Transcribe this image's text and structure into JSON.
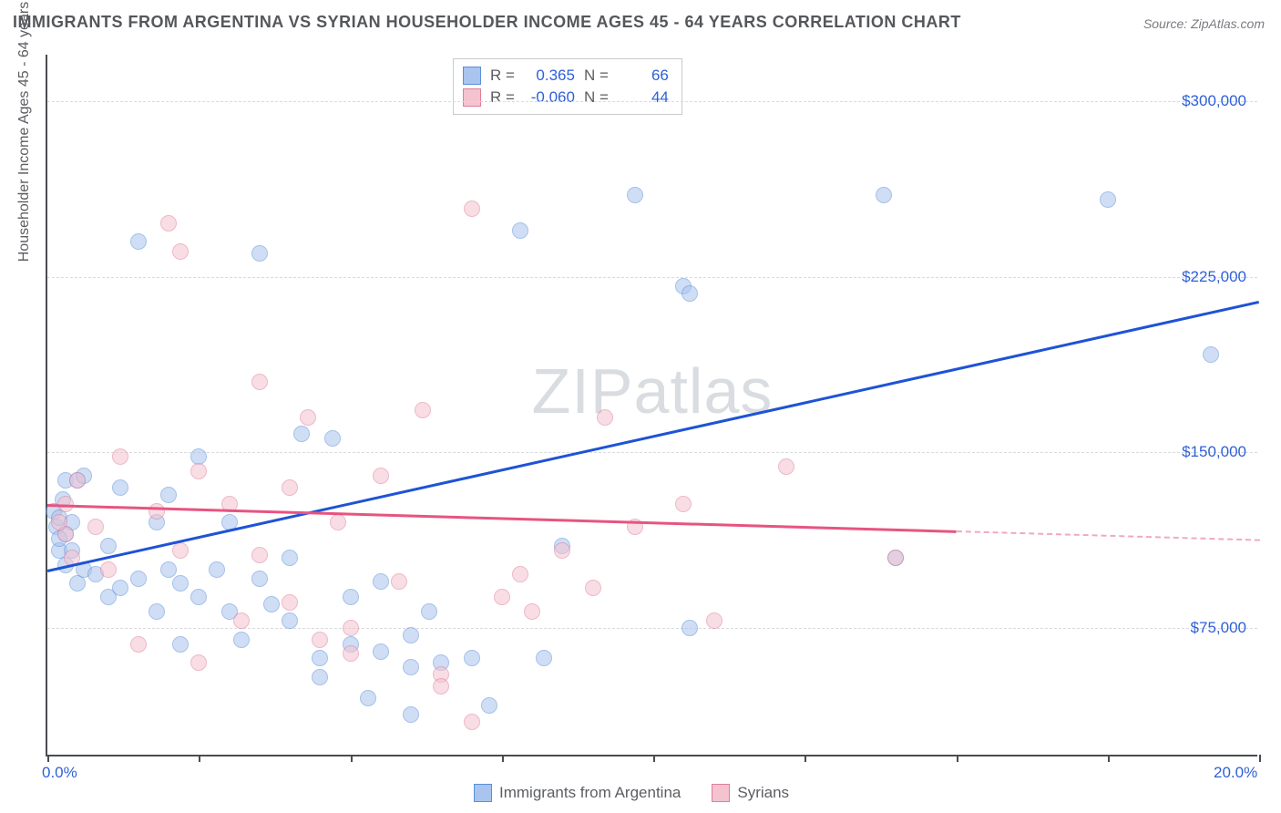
{
  "title": "IMMIGRANTS FROM ARGENTINA VS SYRIAN HOUSEHOLDER INCOME AGES 45 - 64 YEARS CORRELATION CHART",
  "source": "Source: ZipAtlas.com",
  "ylabel": "Householder Income Ages 45 - 64 years",
  "watermark_a": "ZIP",
  "watermark_b": "atlas",
  "chart": {
    "type": "scatter",
    "background_color": "#ffffff",
    "grid_color": "#d9dbdf",
    "axis_color": "#4a4c50",
    "text_color": "#5c5e62",
    "value_color": "#2f60d8",
    "xlim": [
      0,
      20
    ],
    "ylim": [
      20000,
      320000
    ],
    "xtick_positions": [
      0,
      2.5,
      5,
      7.5,
      10,
      12.5,
      15,
      17.5,
      20
    ],
    "xtick_labels": {
      "0": "0.0%",
      "20": "20.0%"
    },
    "ytick_positions": [
      75000,
      150000,
      225000,
      300000
    ],
    "ytick_labels": [
      "$75,000",
      "$150,000",
      "$225,000",
      "$300,000"
    ],
    "marker_radius": 9,
    "marker_opacity": 0.55,
    "series": [
      {
        "name": "Immigrants from Argentina",
        "color_fill": "#a9c4ee",
        "color_stroke": "#5b8fd9",
        "R": "0.365",
        "N": "66",
        "trend": {
          "x1": 0,
          "y1": 100000,
          "x2": 20,
          "y2": 215000,
          "color": "#1e53d4",
          "dashed_from_x": null
        },
        "points": [
          [
            0.1,
            125000
          ],
          [
            0.15,
            118000
          ],
          [
            0.2,
            122000
          ],
          [
            0.2,
            108000
          ],
          [
            0.25,
            130000
          ],
          [
            0.3,
            115000
          ],
          [
            0.3,
            102000
          ],
          [
            0.3,
            138000
          ],
          [
            0.4,
            120000
          ],
          [
            0.4,
            108000
          ],
          [
            0.5,
            138000
          ],
          [
            0.5,
            94000
          ],
          [
            0.6,
            140000
          ],
          [
            0.6,
            100000
          ],
          [
            0.8,
            98000
          ],
          [
            1.0,
            110000
          ],
          [
            1.0,
            88000
          ],
          [
            1.2,
            92000
          ],
          [
            1.2,
            135000
          ],
          [
            1.5,
            240000
          ],
          [
            1.5,
            96000
          ],
          [
            1.8,
            82000
          ],
          [
            1.8,
            120000
          ],
          [
            2.0,
            100000
          ],
          [
            2.0,
            132000
          ],
          [
            2.2,
            68000
          ],
          [
            2.2,
            94000
          ],
          [
            2.5,
            148000
          ],
          [
            2.5,
            88000
          ],
          [
            2.8,
            100000
          ],
          [
            3.0,
            82000
          ],
          [
            3.0,
            120000
          ],
          [
            3.2,
            70000
          ],
          [
            3.5,
            235000
          ],
          [
            3.5,
            96000
          ],
          [
            3.7,
            85000
          ],
          [
            4.0,
            78000
          ],
          [
            4.0,
            105000
          ],
          [
            4.2,
            158000
          ],
          [
            4.5,
            62000
          ],
          [
            4.5,
            54000
          ],
          [
            4.7,
            156000
          ],
          [
            5.0,
            88000
          ],
          [
            5.0,
            68000
          ],
          [
            5.3,
            45000
          ],
          [
            5.5,
            65000
          ],
          [
            5.5,
            95000
          ],
          [
            6.0,
            72000
          ],
          [
            6.0,
            58000
          ],
          [
            6.0,
            38000
          ],
          [
            6.3,
            82000
          ],
          [
            6.5,
            60000
          ],
          [
            7.0,
            62000
          ],
          [
            7.3,
            42000
          ],
          [
            7.8,
            245000
          ],
          [
            8.2,
            62000
          ],
          [
            8.5,
            110000
          ],
          [
            9.7,
            260000
          ],
          [
            10.5,
            221000
          ],
          [
            10.6,
            218000
          ],
          [
            10.6,
            75000
          ],
          [
            13.8,
            260000
          ],
          [
            14.0,
            105000
          ],
          [
            17.5,
            258000
          ],
          [
            19.2,
            192000
          ],
          [
            0.2,
            113000
          ]
        ]
      },
      {
        "name": "Syrians",
        "color_fill": "#f4c3cf",
        "color_stroke": "#e07f9b",
        "R": "-0.060",
        "N": "44",
        "trend": {
          "x1": 0,
          "y1": 128000,
          "x2": 20,
          "y2": 113000,
          "color": "#e75480",
          "dashed_from_x": 15
        },
        "points": [
          [
            0.3,
            128000
          ],
          [
            0.3,
            115000
          ],
          [
            0.4,
            105000
          ],
          [
            0.5,
            138000
          ],
          [
            0.8,
            118000
          ],
          [
            1.0,
            100000
          ],
          [
            1.2,
            148000
          ],
          [
            1.5,
            68000
          ],
          [
            1.8,
            125000
          ],
          [
            2.0,
            248000
          ],
          [
            2.2,
            236000
          ],
          [
            2.2,
            108000
          ],
          [
            2.5,
            142000
          ],
          [
            2.5,
            60000
          ],
          [
            3.0,
            128000
          ],
          [
            3.2,
            78000
          ],
          [
            3.5,
            180000
          ],
          [
            3.5,
            106000
          ],
          [
            4.0,
            135000
          ],
          [
            4.0,
            86000
          ],
          [
            4.3,
            165000
          ],
          [
            4.5,
            70000
          ],
          [
            4.8,
            120000
          ],
          [
            5.0,
            75000
          ],
          [
            5.0,
            64000
          ],
          [
            5.5,
            140000
          ],
          [
            5.8,
            95000
          ],
          [
            6.2,
            168000
          ],
          [
            6.5,
            55000
          ],
          [
            6.5,
            50000
          ],
          [
            7.0,
            254000
          ],
          [
            7.0,
            35000
          ],
          [
            7.5,
            88000
          ],
          [
            7.8,
            98000
          ],
          [
            8.0,
            82000
          ],
          [
            8.5,
            108000
          ],
          [
            9.0,
            92000
          ],
          [
            9.2,
            165000
          ],
          [
            9.7,
            118000
          ],
          [
            10.5,
            128000
          ],
          [
            11.0,
            78000
          ],
          [
            12.2,
            144000
          ],
          [
            14.0,
            105000
          ],
          [
            0.2,
            120000
          ]
        ]
      }
    ]
  },
  "legend": {
    "series1_label": "Immigrants from Argentina",
    "series2_label": "Syrians"
  },
  "stats_labels": {
    "R": "R =",
    "N": "N ="
  }
}
